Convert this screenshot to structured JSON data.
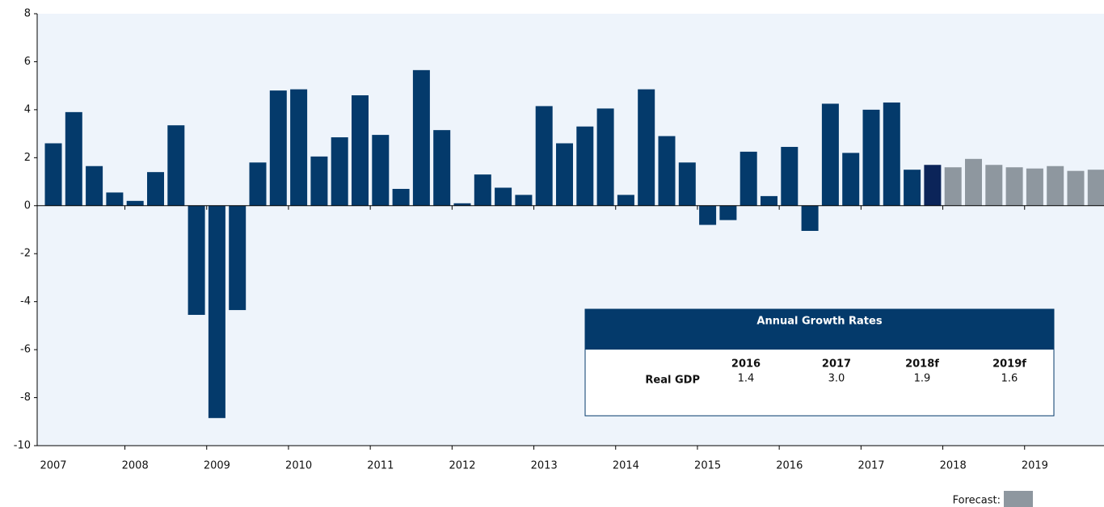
{
  "chart_data": {
    "type": "bar",
    "categories": [
      "2007",
      null,
      null,
      null,
      "2008",
      null,
      null,
      null,
      "2009",
      null,
      null,
      null,
      "2010",
      null,
      null,
      null,
      "2011",
      null,
      null,
      null,
      "2012",
      null,
      null,
      null,
      "2013",
      null,
      null,
      null,
      "2014",
      null,
      null,
      null,
      "2015",
      null,
      null,
      null,
      "2016",
      null,
      null,
      null,
      "2017",
      null,
      null,
      null,
      "2018",
      null,
      null,
      null,
      "2019",
      null,
      null,
      null
    ],
    "values": [
      2.6,
      3.9,
      1.65,
      0.55,
      0.2,
      1.4,
      3.35,
      -4.55,
      -8.85,
      -4.35,
      1.8,
      4.8,
      4.85,
      2.05,
      2.85,
      4.6,
      2.95,
      0.7,
      5.65,
      3.15,
      0.1,
      1.3,
      0.75,
      0.45,
      4.15,
      2.6,
      3.3,
      4.05,
      0.45,
      4.85,
      2.9,
      1.8,
      -0.8,
      -0.6,
      2.25,
      0.4,
      2.45,
      -1.05,
      4.25,
      2.2,
      4.0,
      4.3,
      1.5,
      1.7,
      1.6,
      1.95,
      1.7,
      1.6,
      1.55,
      1.65,
      1.45,
      1.5
    ],
    "colors": [
      "#043a6b",
      "#043a6b",
      "#043a6b",
      "#043a6b",
      "#043a6b",
      "#043a6b",
      "#043a6b",
      "#043a6b",
      "#043a6b",
      "#043a6b",
      "#043a6b",
      "#043a6b",
      "#043a6b",
      "#043a6b",
      "#043a6b",
      "#043a6b",
      "#043a6b",
      "#043a6b",
      "#043a6b",
      "#043a6b",
      "#043a6b",
      "#043a6b",
      "#043a6b",
      "#043a6b",
      "#043a6b",
      "#043a6b",
      "#043a6b",
      "#043a6b",
      "#043a6b",
      "#043a6b",
      "#043a6b",
      "#043a6b",
      "#043a6b",
      "#043a6b",
      "#043a6b",
      "#043a6b",
      "#043a6b",
      "#043a6b",
      "#043a6b",
      "#043a6b",
      "#043a6b",
      "#043a6b",
      "#043a6b",
      "#0b2459",
      "#8e979f",
      "#8e979f",
      "#8e979f",
      "#8e979f",
      "#8e979f",
      "#8e979f",
      "#8e979f",
      "#8e979f"
    ],
    "ylim": [
      -10,
      8
    ],
    "yticks": [
      -10,
      -8,
      -6,
      -4,
      -2,
      0,
      2,
      4,
      6,
      8
    ],
    "legend": {
      "label": "Forecast:",
      "color": "#8e979f"
    },
    "table": {
      "title": "Annual Growth Rates",
      "columns": [
        "2016",
        "2017",
        "2018f",
        "2019f"
      ],
      "row_label": "Real GDP",
      "values": [
        "1.4",
        "3.0",
        "1.9",
        "1.6"
      ]
    }
  }
}
